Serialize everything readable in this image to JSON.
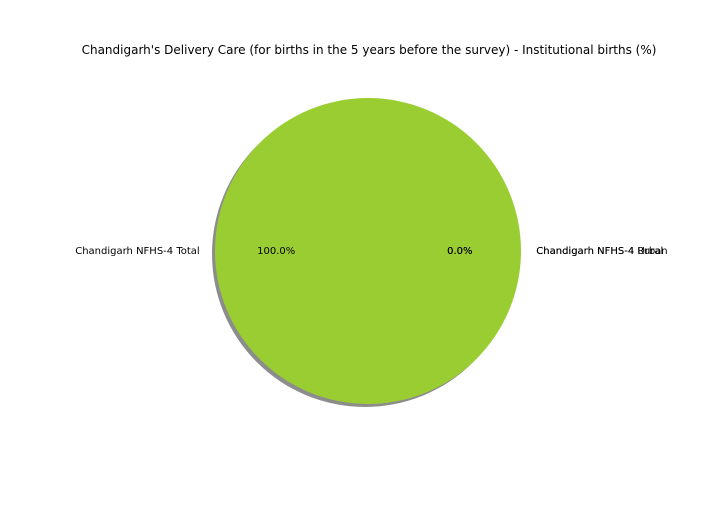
{
  "chart_data": {
    "type": "pie",
    "title": "Chandigarh's Delivery Care (for births in the 5 years before the survey) - Institutional births (%)",
    "slices": [
      {
        "label": "Chandigarh NFHS-4 Total",
        "value": 100.0,
        "pct_label": "100.0%",
        "color": "#9acd32"
      },
      {
        "label": "Chandigarh NFHS-4 Urban",
        "value": 0.0,
        "pct_label": "0.0%",
        "color": "#ff8c00"
      },
      {
        "label": "Chandigarh NFHS-4 Rural",
        "value": 0.0,
        "pct_label": "0.0%",
        "color": "#1f77b4"
      }
    ],
    "shadow": true,
    "start_angle_deg": 0,
    "legend": "none"
  }
}
